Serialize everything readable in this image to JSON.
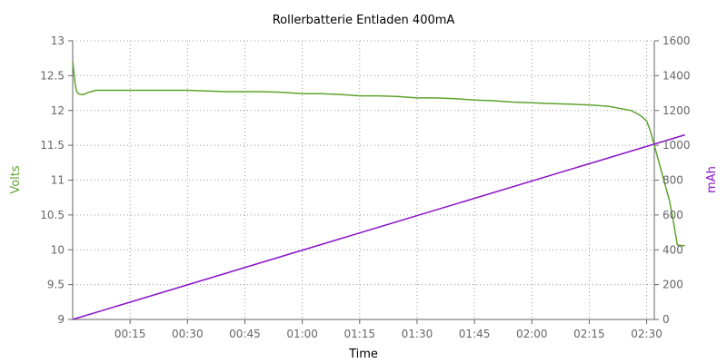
{
  "chart_data": {
    "type": "line",
    "title": "Rollerbatterie Entladen 400mA",
    "xlabel": "Time",
    "ylabel_left": "Volts",
    "ylabel_right": "mAh",
    "x_unit": "minutes",
    "xlim": [
      0,
      152
    ],
    "ylim_left": [
      9,
      13
    ],
    "ylim_right": [
      0,
      1600
    ],
    "x_ticks": [
      {
        "value": 15,
        "label": "00:15"
      },
      {
        "value": 30,
        "label": "00:30"
      },
      {
        "value": 45,
        "label": "00:45"
      },
      {
        "value": 60,
        "label": "01:00"
      },
      {
        "value": 75,
        "label": "01:15"
      },
      {
        "value": 90,
        "label": "01:30"
      },
      {
        "value": 105,
        "label": "01:45"
      },
      {
        "value": 120,
        "label": "02:00"
      },
      {
        "value": 135,
        "label": "02:15"
      },
      {
        "value": 150,
        "label": "02:30"
      }
    ],
    "y_left_ticks": [
      "9",
      "9.5",
      "10",
      "10.5",
      "11",
      "11.5",
      "12",
      "12.5",
      "13"
    ],
    "y_right_ticks": [
      "0",
      "200",
      "400",
      "600",
      "800",
      "1000",
      "1200",
      "1400",
      "1600"
    ],
    "grid": true,
    "colors": {
      "volts": "#5ea32e",
      "mAh": "#8b12c9",
      "axis_text": "#666666",
      "grid": "#999999"
    },
    "series": [
      {
        "axis": "left",
        "color": "#5ea32e",
        "x": [
          0,
          0.3,
          0.6,
          1,
          1.5,
          2,
          3,
          4,
          5,
          6,
          10,
          20,
          30,
          35,
          40,
          50,
          55,
          60,
          65,
          70,
          75,
          80,
          85,
          90,
          95,
          100,
          105,
          110,
          115,
          120,
          125,
          130,
          135,
          140,
          142,
          144,
          146,
          147,
          148,
          149,
          150,
          151,
          152,
          153,
          154,
          155,
          156,
          157,
          158,
          159,
          160
        ],
        "y": [
          12.7,
          12.55,
          12.4,
          12.28,
          12.24,
          12.23,
          12.23,
          12.26,
          12.27,
          12.29,
          12.29,
          12.29,
          12.29,
          12.28,
          12.27,
          12.27,
          12.26,
          12.24,
          12.24,
          12.23,
          12.21,
          12.21,
          12.2,
          12.18,
          12.18,
          12.17,
          12.15,
          12.14,
          12.12,
          12.11,
          12.1,
          12.09,
          12.08,
          12.06,
          12.04,
          12.02,
          12.0,
          11.97,
          11.94,
          11.9,
          11.85,
          11.7,
          11.5,
          11.3,
          11.1,
          10.9,
          10.7,
          10.4,
          10.07,
          10.06,
          10.06
        ]
      },
      {
        "axis": "right",
        "color": "#8b12c9",
        "x": [
          0,
          160
        ],
        "y": [
          0,
          1060
        ]
      }
    ]
  }
}
